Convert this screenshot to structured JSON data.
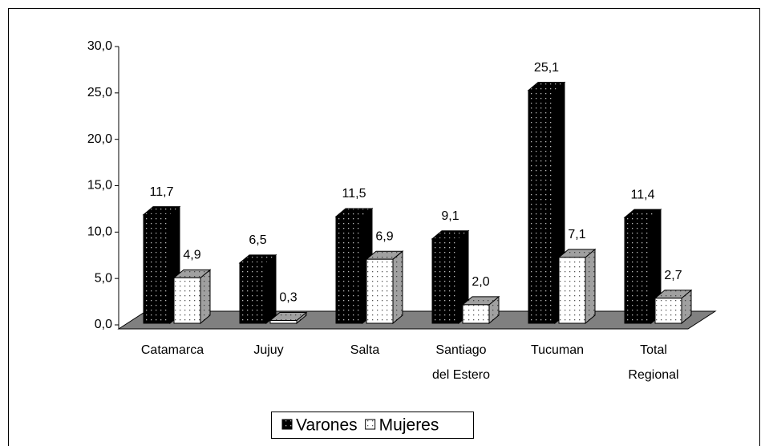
{
  "chart_data": {
    "type": "bar3d",
    "categories": [
      "Catamarca",
      "Jujuy",
      "Salta",
      "Santiago\ndel Estero",
      "Tucuman",
      "Total\nRegional"
    ],
    "series": [
      {
        "name": "Varones",
        "color": "#000000",
        "values": [
          11.7,
          6.5,
          11.5,
          9.1,
          25.1,
          11.4
        ],
        "value_labels": [
          "11,7",
          "6,5",
          "11,5",
          "9,1",
          "25,1",
          "11,4"
        ]
      },
      {
        "name": "Mujeres",
        "color": "#ffffff",
        "values": [
          4.9,
          0.3,
          6.9,
          2.0,
          7.1,
          2.7
        ],
        "value_labels": [
          "4,9",
          "0,3",
          "6,9",
          "2,0",
          "7,1",
          "2,7"
        ]
      }
    ],
    "ylim": [
      0,
      30
    ],
    "yticks": [
      {
        "value": 0,
        "label": "0,0"
      },
      {
        "value": 5,
        "label": "5,0"
      },
      {
        "value": 10,
        "label": "10,0"
      },
      {
        "value": 15,
        "label": "15,0"
      },
      {
        "value": 20,
        "label": "20,0"
      },
      {
        "value": 25,
        "label": "25,0"
      },
      {
        "value": 30,
        "label": "30,0"
      }
    ],
    "legend": "bottom"
  }
}
